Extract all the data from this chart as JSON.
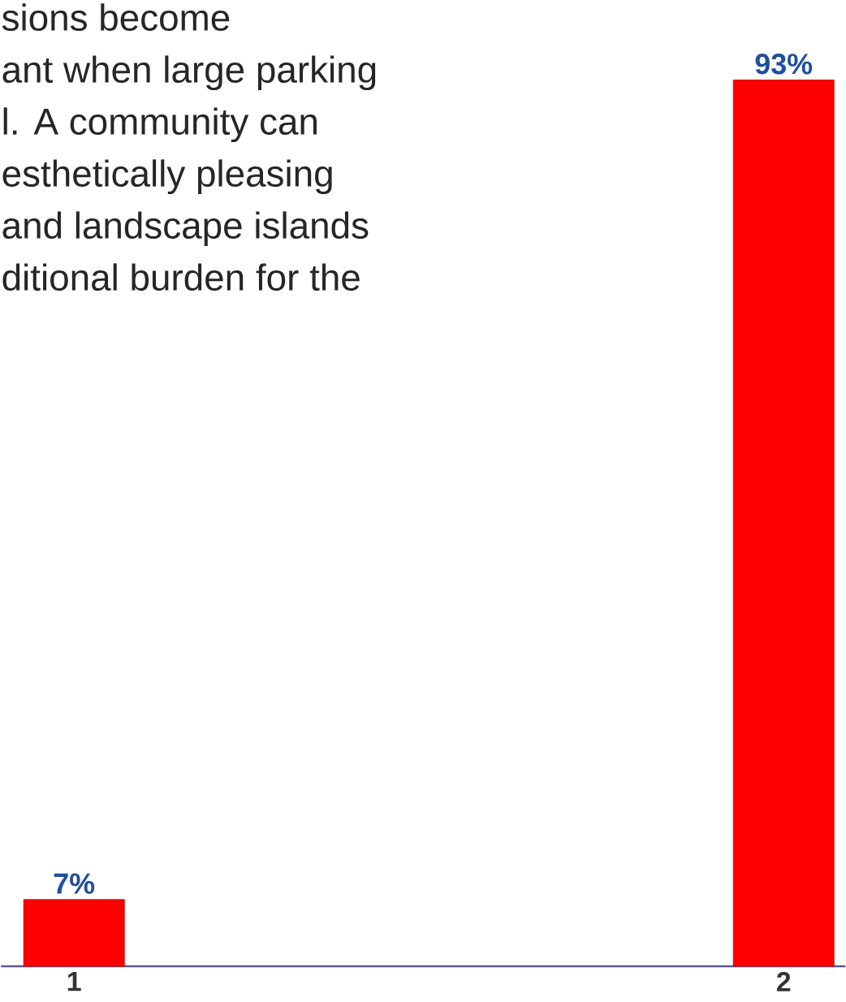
{
  "chart_data": {
    "type": "bar",
    "categories": [
      "1",
      "2"
    ],
    "values": [
      7,
      93
    ],
    "value_labels": [
      "7%",
      "93%"
    ],
    "color": "#ff0000",
    "annotations": [
      "sions become",
      "ant when large parking",
      "l.  A community can",
      "esthetically pleasing",
      "and landscape islands",
      "ditional burden for the"
    ]
  }
}
